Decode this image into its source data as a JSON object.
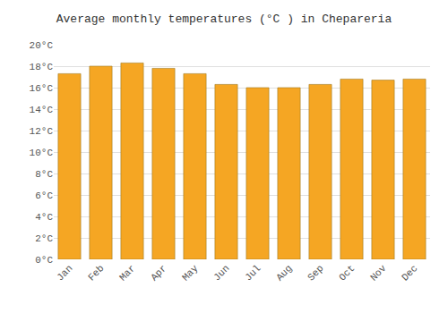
{
  "chart_data": {
    "type": "bar",
    "title": "Average monthly temperatures (°C ) in Chepareria",
    "categories": [
      "Jan",
      "Feb",
      "Mar",
      "Apr",
      "May",
      "Jun",
      "Jul",
      "Aug",
      "Sep",
      "Oct",
      "Nov",
      "Dec"
    ],
    "values": [
      17.3,
      18.0,
      18.3,
      17.8,
      17.3,
      16.3,
      16.0,
      16.0,
      16.3,
      16.8,
      16.7,
      16.8
    ],
    "color": "#F5A623",
    "ylim": [
      0,
      20
    ],
    "yticks": [
      {
        "value": 0,
        "label": "0°C"
      },
      {
        "value": 2,
        "label": "2°C"
      },
      {
        "value": 4,
        "label": "4°C"
      },
      {
        "value": 6,
        "label": "6°C"
      },
      {
        "value": 8,
        "label": "8°C"
      },
      {
        "value": 10,
        "label": "10°C"
      },
      {
        "value": 12,
        "label": "12°C"
      },
      {
        "value": 14,
        "label": "14°C"
      },
      {
        "value": 16,
        "label": "16°C"
      },
      {
        "value": 18,
        "label": "18°C"
      },
      {
        "value": 20,
        "label": "20°C"
      }
    ],
    "grid": true
  }
}
